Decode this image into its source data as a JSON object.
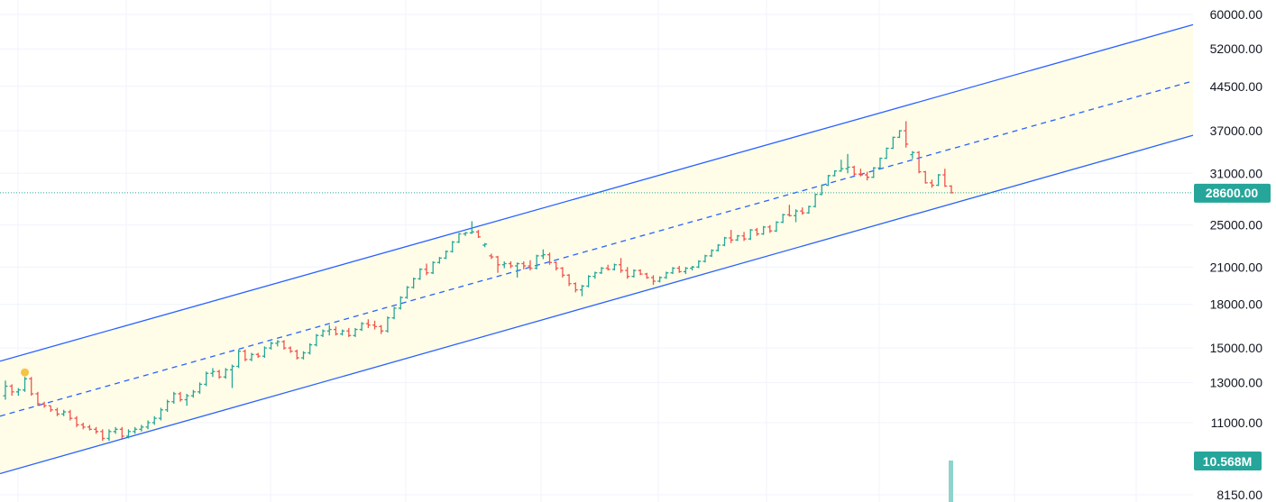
{
  "chart_data": {
    "type": "ohlc",
    "scale": "log",
    "ylim": [
      8150,
      60000
    ],
    "y_ticks": [
      "60000.00",
      "52000.00",
      "44500.00",
      "37000.00",
      "31000.00",
      "25000.00",
      "21000.00",
      "18000.00",
      "15000.00",
      "13000.00",
      "11000.00",
      "8150.00"
    ],
    "current_price": {
      "value": 28600,
      "label": "28600.00",
      "color": "#26a69a"
    },
    "volume": {
      "label": "10.568M",
      "color": "#26a69a",
      "bar_color": "#8fd3cb"
    },
    "colors": {
      "up": "#26a69a",
      "down": "#ef5350",
      "channel_line": "#2962ff",
      "channel_fill": "#fffde7",
      "grid": "#f0f3fa",
      "marker": "#f6c343"
    },
    "channel": {
      "upper": [
        [
          0,
          14200
        ],
        [
          1323,
          57500
        ]
      ],
      "mid": [
        [
          0,
          11300
        ],
        [
          1323,
          45500
        ]
      ],
      "lower": [
        [
          0,
          8900
        ],
        [
          1323,
          36300
        ]
      ]
    },
    "grid": true,
    "marker_bar_index": 3,
    "bars": [
      [
        12300,
        13100,
        12100,
        12800
      ],
      [
        12800,
        12900,
        12300,
        12500
      ],
      [
        12500,
        12700,
        12300,
        12600
      ],
      [
        12600,
        13300,
        12500,
        13200
      ],
      [
        13200,
        13300,
        12300,
        12400
      ],
      [
        12400,
        12500,
        11800,
        11900
      ],
      [
        11900,
        12000,
        11700,
        11800
      ],
      [
        11800,
        11800,
        11500,
        11600
      ],
      [
        11600,
        11700,
        11300,
        11400
      ],
      [
        11400,
        11600,
        11300,
        11500
      ],
      [
        11500,
        11600,
        11100,
        11200
      ],
      [
        11200,
        11300,
        10800,
        10900
      ],
      [
        10900,
        11000,
        10700,
        10800
      ],
      [
        10800,
        10900,
        10650,
        10700
      ],
      [
        10700,
        10800,
        10500,
        10600
      ],
      [
        10600,
        10700,
        10200,
        10300
      ],
      [
        10300,
        10700,
        10200,
        10600
      ],
      [
        10600,
        10800,
        10500,
        10700
      ],
      [
        10700,
        10800,
        10300,
        10400
      ],
      [
        10400,
        10700,
        10300,
        10600
      ],
      [
        10600,
        10800,
        10500,
        10700
      ],
      [
        10700,
        10900,
        10600,
        10800
      ],
      [
        10800,
        11100,
        10700,
        11000
      ],
      [
        11000,
        11300,
        10900,
        11200
      ],
      [
        11200,
        11700,
        11100,
        11600
      ],
      [
        11600,
        12100,
        11500,
        12000
      ],
      [
        12000,
        12500,
        11900,
        12400
      ],
      [
        12400,
        12500,
        12000,
        12100
      ],
      [
        12100,
        12400,
        11800,
        12300
      ],
      [
        12300,
        12600,
        12200,
        12500
      ],
      [
        12500,
        13000,
        12400,
        12900
      ],
      [
        12900,
        13600,
        12800,
        13500
      ],
      [
        13500,
        13800,
        13300,
        13600
      ],
      [
        13600,
        13700,
        13200,
        13300
      ],
      [
        13300,
        13800,
        13200,
        13700
      ],
      [
        13700,
        14000,
        12700,
        13900
      ],
      [
        13900,
        14900,
        13800,
        14800
      ],
      [
        14800,
        14900,
        14200,
        14300
      ],
      [
        14300,
        14700,
        14200,
        14600
      ],
      [
        14600,
        14700,
        14400,
        14500
      ],
      [
        14500,
        15100,
        14400,
        15000
      ],
      [
        15000,
        15400,
        14900,
        15300
      ],
      [
        15300,
        15500,
        15100,
        15400
      ],
      [
        15400,
        15500,
        14900,
        15000
      ],
      [
        15000,
        15100,
        14700,
        14800
      ],
      [
        14800,
        14900,
        14300,
        14400
      ],
      [
        14400,
        14800,
        14300,
        14700
      ],
      [
        14700,
        15300,
        14600,
        15200
      ],
      [
        15200,
        15900,
        15100,
        15800
      ],
      [
        15800,
        16200,
        15700,
        16100
      ],
      [
        16100,
        16500,
        15800,
        16200
      ],
      [
        16200,
        16400,
        15800,
        15900
      ],
      [
        15900,
        16200,
        15800,
        16100
      ],
      [
        16100,
        16300,
        15700,
        15800
      ],
      [
        15800,
        16300,
        15700,
        16200
      ],
      [
        16200,
        16700,
        16100,
        16600
      ],
      [
        16600,
        16900,
        16300,
        16500
      ],
      [
        16500,
        16800,
        16200,
        16400
      ],
      [
        16400,
        16500,
        15900,
        16100
      ],
      [
        16100,
        17100,
        16000,
        17000
      ],
      [
        17000,
        17800,
        16900,
        17700
      ],
      [
        17700,
        18600,
        17600,
        18500
      ],
      [
        18500,
        19400,
        18400,
        19300
      ],
      [
        19300,
        20100,
        19200,
        20000
      ],
      [
        20000,
        20900,
        19900,
        20800
      ],
      [
        20800,
        21300,
        20300,
        20500
      ],
      [
        20500,
        21500,
        20400,
        21400
      ],
      [
        21400,
        21900,
        21300,
        21800
      ],
      [
        21800,
        22500,
        21700,
        22400
      ],
      [
        22400,
        23400,
        22300,
        23300
      ],
      [
        23300,
        24200,
        23200,
        24100
      ],
      [
        24100,
        24300,
        23900,
        24200
      ],
      [
        24200,
        25400,
        24100,
        24300
      ],
      [
        24300,
        24500,
        23700,
        23800
      ],
      [
        23000,
        23200,
        22800,
        23100
      ],
      [
        22000,
        22200,
        21700,
        21900
      ],
      [
        21900,
        22000,
        20500,
        21200
      ],
      [
        21200,
        21500,
        20900,
        21300
      ],
      [
        21300,
        21500,
        20900,
        21100
      ],
      [
        21100,
        21400,
        20100,
        21300
      ],
      [
        21300,
        21500,
        20800,
        21100
      ],
      [
        21100,
        21600,
        20700,
        20900
      ],
      [
        20900,
        22100,
        20800,
        22000
      ],
      [
        22000,
        22600,
        21700,
        22100
      ],
      [
        22100,
        22300,
        21200,
        21400
      ],
      [
        21400,
        21500,
        20700,
        20900
      ],
      [
        20900,
        21000,
        20100,
        20300
      ],
      [
        20300,
        20400,
        19400,
        19600
      ],
      [
        19600,
        19700,
        18900,
        19100
      ],
      [
        19100,
        19500,
        18600,
        19400
      ],
      [
        19400,
        20300,
        19300,
        20200
      ],
      [
        20200,
        20600,
        20000,
        20500
      ],
      [
        20500,
        21000,
        20400,
        20900
      ],
      [
        20900,
        21200,
        20700,
        20800
      ],
      [
        20800,
        21300,
        20700,
        21200
      ],
      [
        21200,
        21800,
        20500,
        20700
      ],
      [
        20700,
        21000,
        20000,
        20200
      ],
      [
        20200,
        20800,
        20100,
        20700
      ],
      [
        20700,
        20800,
        20300,
        20400
      ],
      [
        20400,
        20500,
        20000,
        20100
      ],
      [
        20100,
        20300,
        19500,
        19800
      ],
      [
        19800,
        20200,
        19700,
        20100
      ],
      [
        20100,
        20600,
        20000,
        20500
      ],
      [
        20500,
        21000,
        20400,
        20900
      ],
      [
        20900,
        21100,
        20500,
        20600
      ],
      [
        20600,
        21000,
        20400,
        20900
      ],
      [
        20900,
        21100,
        20700,
        21000
      ],
      [
        21000,
        21600,
        20900,
        21500
      ],
      [
        21500,
        22100,
        21400,
        22000
      ],
      [
        22000,
        22600,
        21900,
        22500
      ],
      [
        22500,
        23100,
        22400,
        23000
      ],
      [
        23000,
        23800,
        22900,
        23700
      ],
      [
        23700,
        24500,
        23200,
        23500
      ],
      [
        23500,
        24000,
        23400,
        23900
      ],
      [
        23900,
        24300,
        23400,
        23600
      ],
      [
        23600,
        24600,
        23500,
        24500
      ],
      [
        24500,
        24700,
        23900,
        24100
      ],
      [
        24100,
        24900,
        24000,
        24800
      ],
      [
        24800,
        25000,
        24200,
        24400
      ],
      [
        24400,
        25400,
        24300,
        25300
      ],
      [
        25300,
        26200,
        25200,
        26100
      ],
      [
        26100,
        27200,
        25900,
        26000
      ],
      [
        26000,
        26700,
        25300,
        26500
      ],
      [
        26500,
        26900,
        26100,
        26300
      ],
      [
        26300,
        27100,
        26200,
        27000
      ],
      [
        27000,
        28500,
        26900,
        28400
      ],
      [
        28400,
        29600,
        28300,
        29500
      ],
      [
        29500,
        30800,
        29400,
        30700
      ],
      [
        30700,
        31400,
        30600,
        31300
      ],
      [
        31300,
        32800,
        31200,
        31600
      ],
      [
        31600,
        33600,
        31000,
        31800
      ],
      [
        31800,
        32000,
        30700,
        30900
      ],
      [
        30900,
        31600,
        30600,
        30800
      ],
      [
        30800,
        31200,
        30100,
        30500
      ],
      [
        30500,
        31800,
        30400,
        31700
      ],
      [
        31700,
        33100,
        31600,
        33000
      ],
      [
        33000,
        34500,
        32900,
        34400
      ],
      [
        34400,
        36100,
        34300,
        36000
      ],
      [
        36000,
        37100,
        35900,
        37000
      ],
      [
        37000,
        38500,
        34500,
        35000
      ],
      [
        33500,
        34000,
        32900,
        33800
      ],
      [
        33800,
        34000,
        31000,
        31200
      ],
      [
        31200,
        31300,
        29700,
        29800
      ],
      [
        29800,
        30200,
        29200,
        29500
      ],
      [
        29500,
        30900,
        29400,
        30800
      ],
      [
        30800,
        31600,
        29300,
        29400
      ],
      [
        29400,
        29500,
        28500,
        28600
      ]
    ]
  }
}
